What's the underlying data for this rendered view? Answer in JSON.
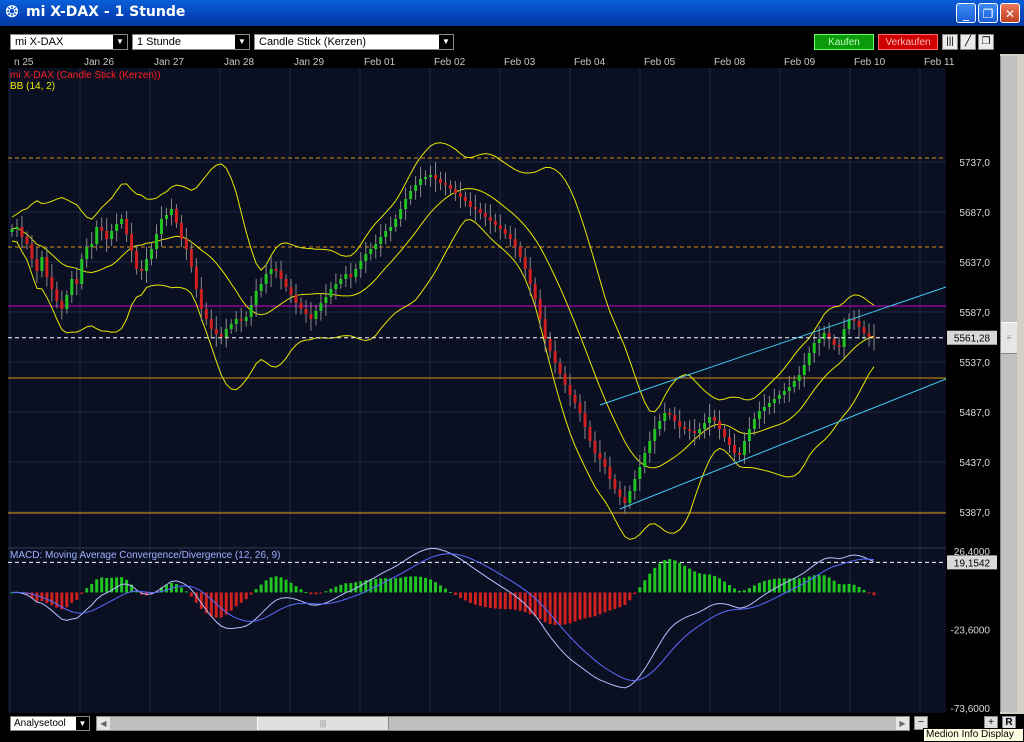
{
  "window": {
    "title": "mi X-DAX - 1 Stunde",
    "minimize": "_",
    "maximize": "❐",
    "close": "✕"
  },
  "toolbar": {
    "symbol": "mi X-DAX",
    "interval": "1 Stunde",
    "charttype": "Candle Stick (Kerzen)",
    "buy": "Kaufen",
    "sell": "Verkaufen",
    "buy_color": "#0a9a0a",
    "sell_color": "#d00000"
  },
  "bottom": {
    "tool": "Analysetool",
    "scroll_mark": "|||",
    "zoom_minus": "−",
    "zoom_plus": "+",
    "r": "R"
  },
  "tooltip": "Medion Info Display",
  "chart_data": {
    "type": "candlestick",
    "dates": [
      "n 25",
      "Jan 26",
      "Jan 27",
      "Jan 28",
      "Jan 29",
      "Feb 01",
      "Feb 02",
      "Feb 03",
      "Feb 04",
      "Feb 05",
      "Feb 08",
      "Feb 09",
      "Feb 10",
      "Feb 11"
    ],
    "legend": [
      {
        "label": "mi X-DAX (Candle Stick (Kerzen))",
        "color": "#ff2020"
      },
      {
        "label": "BB (14, 2)",
        "color": "#f0f000"
      }
    ],
    "price_ticks": [
      5737.0,
      5687.0,
      5637.0,
      5587.0,
      5537.0,
      5487.0,
      5437.0,
      5387.0
    ],
    "price_tick_labels": [
      "5737,0",
      "5687,0",
      "5637,0",
      "5587,0",
      "5537,0",
      "5487,0",
      "5437,0",
      "5387,0"
    ],
    "ylim": [
      5348,
      5785
    ],
    "last_price": "5561,28",
    "last_value": 5561.28,
    "hlines": [
      {
        "value": 5741,
        "color": "#d89010",
        "style": "dashed"
      },
      {
        "value": 5652,
        "color": "#d89010",
        "style": "dashed"
      },
      {
        "value": 5593,
        "color": "#d000d0",
        "style": "solid"
      },
      {
        "value": 5521,
        "color": "#d89010",
        "style": "solid"
      },
      {
        "value": 5386,
        "color": "#d89010",
        "style": "solid"
      }
    ],
    "closes": [
      5670,
      5672,
      5662,
      5655,
      5640,
      5628,
      5642,
      5622,
      5610,
      5598,
      5590,
      5604,
      5620,
      5615,
      5640,
      5652,
      5655,
      5672,
      5668,
      5660,
      5668,
      5675,
      5680,
      5665,
      5648,
      5630,
      5628,
      5640,
      5650,
      5665,
      5680,
      5684,
      5690,
      5676,
      5660,
      5650,
      5632,
      5610,
      5590,
      5580,
      5570,
      5565,
      5562,
      5570,
      5575,
      5580,
      5578,
      5582,
      5594,
      5608,
      5615,
      5625,
      5630,
      5628,
      5620,
      5612,
      5604,
      5596,
      5590,
      5585,
      5580,
      5588,
      5596,
      5602,
      5610,
      5615,
      5620,
      5625,
      5622,
      5630,
      5638,
      5645,
      5650,
      5655,
      5662,
      5668,
      5672,
      5680,
      5690,
      5700,
      5708,
      5714,
      5720,
      5722,
      5724,
      5720,
      5716,
      5714,
      5710,
      5706,
      5702,
      5698,
      5692,
      5690,
      5686,
      5682,
      5678,
      5674,
      5670,
      5665,
      5660,
      5652,
      5642,
      5630,
      5615,
      5600,
      5580,
      5560,
      5548,
      5536,
      5525,
      5514,
      5504,
      5496,
      5486,
      5472,
      5458,
      5446,
      5440,
      5432,
      5420,
      5410,
      5402,
      5396,
      5408,
      5420,
      5432,
      5446,
      5458,
      5470,
      5478,
      5486,
      5484,
      5478,
      5472,
      5470,
      5468,
      5466,
      5470,
      5476,
      5482,
      5478,
      5470,
      5462,
      5454,
      5446,
      5444,
      5458,
      5470,
      5480,
      5488,
      5492,
      5496,
      5500,
      5504,
      5508,
      5512,
      5518,
      5524,
      5534,
      5546,
      5556,
      5560,
      5566,
      5560,
      5554,
      5552,
      5570,
      5580,
      5578,
      5572,
      5566,
      5562,
      5561
    ],
    "macd": {
      "label": "MACD: Moving Average Convergence/Divergence (12, 26, 9)",
      "ylim": [
        -73.6,
        26.4
      ],
      "ticks": [
        26.4,
        -23.6,
        -73.6
      ],
      "tick_labels": [
        "26,4000",
        "-23,6000",
        "-73,6000"
      ],
      "current": "19,1542",
      "current_value": 19.1542
    }
  }
}
